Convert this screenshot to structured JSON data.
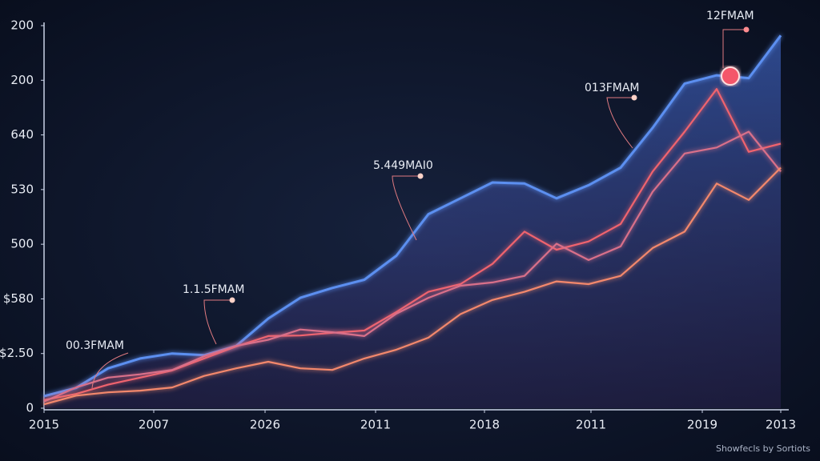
{
  "chart_data": {
    "type": "line",
    "x": [
      0,
      4,
      8,
      12,
      16,
      20,
      24,
      28,
      32,
      36,
      40,
      44,
      48,
      52,
      56,
      60,
      64,
      68,
      72,
      76,
      80,
      84,
      88,
      92
    ],
    "xlim": [
      0,
      93
    ],
    "xticks": [
      {
        "value": 0,
        "label": "2015"
      },
      {
        "value": 13.7,
        "label": "2007"
      },
      {
        "value": 27.6,
        "label": "2026"
      },
      {
        "value": 41.4,
        "label": "2011"
      },
      {
        "value": 55,
        "label": "2018"
      },
      {
        "value": 68.3,
        "label": "2011"
      },
      {
        "value": 82.2,
        "label": "2019"
      },
      {
        "value": 92,
        "label": "2013"
      }
    ],
    "ylim": [
      0,
      7
    ],
    "yticks": [
      0,
      {
        "value": 1,
        "label": "$2.50"
      },
      {
        "value": 2,
        "label": "$580"
      },
      {
        "value": 3,
        "label": "500"
      },
      {
        "value": 4,
        "label": "530"
      },
      {
        "value": 5,
        "label": "640"
      },
      {
        "value": 6,
        "label": "200"
      },
      {
        "value": 7,
        "label": "200"
      }
    ],
    "series": [
      {
        "color": "#5b8ff0",
        "values": [
          0.22,
          0.37,
          0.73,
          0.91,
          1.0,
          0.97,
          1.14,
          1.64,
          2.02,
          2.2,
          2.35,
          2.79,
          3.55,
          3.84,
          4.13,
          4.11,
          3.84,
          4.08,
          4.4,
          5.13,
          5.94,
          6.09,
          6.04,
          6.82
        ]
      },
      {
        "color": "#f0646e",
        "values": [
          0.15,
          0.26,
          0.43,
          0.56,
          0.69,
          0.91,
          1.13,
          1.32,
          1.33,
          1.38,
          1.42,
          1.76,
          2.13,
          2.27,
          2.64,
          3.23,
          2.9,
          3.05,
          3.37,
          4.33,
          5.06,
          5.84,
          4.69,
          4.84
        ]
      },
      {
        "color": "#d9708a",
        "values": [
          0.12,
          0.38,
          0.56,
          0.62,
          0.7,
          0.95,
          1.14,
          1.25,
          1.44,
          1.39,
          1.32,
          1.73,
          2.02,
          2.24,
          2.3,
          2.42,
          3.01,
          2.71,
          2.96,
          3.96,
          4.66,
          4.77,
          5.06,
          4.33
        ]
      },
      {
        "color": "#f3886c",
        "values": [
          0.07,
          0.23,
          0.29,
          0.32,
          0.38,
          0.59,
          0.73,
          0.85,
          0.73,
          0.7,
          0.91,
          1.07,
          1.29,
          1.72,
          1.98,
          2.13,
          2.32,
          2.27,
          2.42,
          2.93,
          3.23,
          4.11,
          3.81,
          4.4
        ]
      }
    ],
    "annotations": [
      "00.3FMAM",
      "1.1.5FMAM",
      "5.449MAI0",
      "013FMAM",
      "12FMAM"
    ],
    "footer": "Showfecls by Sortiots"
  }
}
